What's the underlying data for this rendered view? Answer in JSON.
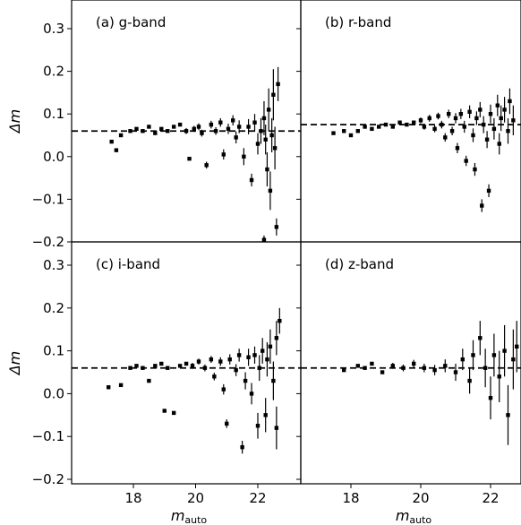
{
  "chart_data": [
    {
      "panel": "a",
      "type": "scatter",
      "label": "(a) g-band",
      "xlabel": "",
      "ylabel": "Δm",
      "xlim": [
        16.3,
        22.8
      ],
      "ylim": [
        -0.2,
        0.34
      ],
      "xticks": [],
      "yticks": [
        "0.3",
        "0.2",
        "0.1",
        "0.0",
        "−0.1",
        "−0.2"
      ],
      "reference_line": 0.06,
      "points": [
        [
          17.3,
          0.035,
          0.004
        ],
        [
          17.45,
          0.015,
          0.004
        ],
        [
          17.6,
          0.05,
          0.004
        ],
        [
          17.9,
          0.06,
          0.005
        ],
        [
          18.1,
          0.065,
          0.005
        ],
        [
          18.3,
          0.06,
          0.005
        ],
        [
          18.5,
          0.07,
          0.005
        ],
        [
          18.7,
          0.055,
          0.005
        ],
        [
          18.9,
          0.065,
          0.006
        ],
        [
          19.1,
          0.06,
          0.006
        ],
        [
          19.3,
          0.07,
          0.006
        ],
        [
          19.5,
          0.075,
          0.006
        ],
        [
          19.7,
          0.06,
          0.007
        ],
        [
          19.8,
          -0.005,
          0.006
        ],
        [
          19.95,
          0.065,
          0.007
        ],
        [
          20.1,
          0.07,
          0.008
        ],
        [
          20.2,
          0.055,
          0.008
        ],
        [
          20.35,
          -0.02,
          0.008
        ],
        [
          20.5,
          0.075,
          0.009
        ],
        [
          20.65,
          0.06,
          0.009
        ],
        [
          20.8,
          0.08,
          0.01
        ],
        [
          20.9,
          0.005,
          0.012
        ],
        [
          21.05,
          0.065,
          0.012
        ],
        [
          21.2,
          0.085,
          0.012
        ],
        [
          21.3,
          0.045,
          0.014
        ],
        [
          21.4,
          0.07,
          0.015
        ],
        [
          21.55,
          0.0,
          0.02
        ],
        [
          21.7,
          0.07,
          0.018
        ],
        [
          21.8,
          -0.055,
          0.015
        ],
        [
          21.9,
          0.08,
          0.02
        ],
        [
          22.0,
          0.03,
          0.025
        ],
        [
          22.1,
          0.06,
          0.03
        ],
        [
          22.2,
          0.09,
          0.04
        ],
        [
          22.25,
          0.04,
          0.035
        ],
        [
          22.3,
          -0.03,
          0.04
        ],
        [
          22.35,
          0.11,
          0.05
        ],
        [
          22.4,
          -0.08,
          0.045
        ],
        [
          22.45,
          0.05,
          0.04
        ],
        [
          22.5,
          0.145,
          0.06
        ],
        [
          22.55,
          0.02,
          0.05
        ],
        [
          22.6,
          -0.165,
          0.02
        ],
        [
          22.65,
          0.17,
          0.04
        ],
        [
          22.2,
          -0.195,
          0.01
        ]
      ]
    },
    {
      "panel": "b",
      "type": "scatter",
      "label": "(b) r-band",
      "xlabel": "",
      "ylabel": "",
      "xlim": [
        16.3,
        22.8
      ],
      "ylim": [
        -0.2,
        0.34
      ],
      "xticks": [],
      "yticks": [],
      "reference_line": 0.075,
      "points": [
        [
          17.5,
          0.055,
          0.004
        ],
        [
          17.8,
          0.06,
          0.004
        ],
        [
          18.0,
          0.05,
          0.004
        ],
        [
          18.2,
          0.06,
          0.005
        ],
        [
          18.4,
          0.07,
          0.005
        ],
        [
          18.6,
          0.065,
          0.005
        ],
        [
          18.8,
          0.07,
          0.005
        ],
        [
          19.0,
          0.075,
          0.005
        ],
        [
          19.2,
          0.07,
          0.006
        ],
        [
          19.4,
          0.08,
          0.006
        ],
        [
          19.6,
          0.075,
          0.006
        ],
        [
          19.8,
          0.08,
          0.006
        ],
        [
          20.0,
          0.085,
          0.007
        ],
        [
          20.1,
          0.07,
          0.007
        ],
        [
          20.25,
          0.09,
          0.008
        ],
        [
          20.4,
          0.065,
          0.008
        ],
        [
          20.5,
          0.095,
          0.008
        ],
        [
          20.6,
          0.075,
          0.009
        ],
        [
          20.7,
          0.045,
          0.01
        ],
        [
          20.8,
          0.1,
          0.01
        ],
        [
          20.9,
          0.06,
          0.01
        ],
        [
          21.0,
          0.09,
          0.012
        ],
        [
          21.05,
          0.02,
          0.012
        ],
        [
          21.15,
          0.1,
          0.012
        ],
        [
          21.25,
          0.07,
          0.014
        ],
        [
          21.3,
          -0.01,
          0.012
        ],
        [
          21.4,
          0.105,
          0.015
        ],
        [
          21.5,
          0.05,
          0.016
        ],
        [
          21.55,
          -0.03,
          0.015
        ],
        [
          21.6,
          0.09,
          0.016
        ],
        [
          21.7,
          0.11,
          0.018
        ],
        [
          21.75,
          -0.115,
          0.015
        ],
        [
          21.8,
          0.075,
          0.02
        ],
        [
          21.9,
          0.04,
          0.02
        ],
        [
          21.95,
          -0.08,
          0.015
        ],
        [
          22.0,
          0.1,
          0.022
        ],
        [
          22.1,
          0.065,
          0.025
        ],
        [
          22.2,
          0.12,
          0.025
        ],
        [
          22.25,
          0.03,
          0.025
        ],
        [
          22.3,
          0.09,
          0.03
        ],
        [
          22.4,
          0.11,
          0.03
        ],
        [
          22.5,
          0.06,
          0.03
        ],
        [
          22.55,
          0.13,
          0.03
        ],
        [
          22.65,
          0.085,
          0.035
        ]
      ]
    },
    {
      "panel": "c",
      "type": "scatter",
      "label": "(c) i-band",
      "xlabel": "mauto",
      "ylabel": "Δm",
      "xlim": [
        16.3,
        22.8
      ],
      "ylim": [
        -0.2,
        0.34
      ],
      "xticks": [
        "18",
        "20",
        "22"
      ],
      "yticks": [
        "0.3",
        "0.2",
        "0.1",
        "0.0",
        "−0.1",
        "−0.2"
      ],
      "reference_line": 0.06,
      "points": [
        [
          17.2,
          0.015,
          0.004
        ],
        [
          17.6,
          0.02,
          0.004
        ],
        [
          17.9,
          0.06,
          0.004
        ],
        [
          18.1,
          0.065,
          0.005
        ],
        [
          18.3,
          0.06,
          0.005
        ],
        [
          18.5,
          0.03,
          0.005
        ],
        [
          18.7,
          0.065,
          0.005
        ],
        [
          18.9,
          0.07,
          0.005
        ],
        [
          19.0,
          -0.04,
          0.005
        ],
        [
          19.1,
          0.06,
          0.006
        ],
        [
          19.3,
          -0.045,
          0.006
        ],
        [
          19.5,
          0.065,
          0.006
        ],
        [
          19.7,
          0.07,
          0.006
        ],
        [
          19.9,
          0.065,
          0.007
        ],
        [
          20.1,
          0.075,
          0.007
        ],
        [
          20.3,
          0.06,
          0.008
        ],
        [
          20.5,
          0.08,
          0.008
        ],
        [
          20.6,
          0.04,
          0.009
        ],
        [
          20.8,
          0.075,
          0.01
        ],
        [
          20.9,
          0.01,
          0.012
        ],
        [
          21.0,
          -0.07,
          0.01
        ],
        [
          21.1,
          0.08,
          0.012
        ],
        [
          21.3,
          0.055,
          0.014
        ],
        [
          21.4,
          0.09,
          0.015
        ],
        [
          21.5,
          -0.125,
          0.015
        ],
        [
          21.6,
          0.03,
          0.02
        ],
        [
          21.7,
          0.085,
          0.02
        ],
        [
          21.8,
          0.0,
          0.025
        ],
        [
          21.9,
          0.09,
          0.02
        ],
        [
          22.0,
          -0.075,
          0.03
        ],
        [
          22.05,
          0.06,
          0.03
        ],
        [
          22.15,
          0.1,
          0.03
        ],
        [
          22.25,
          -0.05,
          0.04
        ],
        [
          22.3,
          0.08,
          0.04
        ],
        [
          22.4,
          0.11,
          0.04
        ],
        [
          22.5,
          0.03,
          0.045
        ],
        [
          22.6,
          0.13,
          0.04
        ],
        [
          22.7,
          0.17,
          0.03
        ],
        [
          22.6,
          -0.08,
          0.05
        ]
      ]
    },
    {
      "panel": "d",
      "type": "scatter",
      "label": "(d) z-band",
      "xlabel": "mauto",
      "ylabel": "",
      "xlim": [
        16.3,
        22.8
      ],
      "ylim": [
        -0.2,
        0.34
      ],
      "xticks": [
        "18",
        "20",
        "22"
      ],
      "yticks": [],
      "reference_line": 0.06,
      "points": [
        [
          17.8,
          0.055,
          0.004
        ],
        [
          18.2,
          0.065,
          0.005
        ],
        [
          18.4,
          0.06,
          0.005
        ],
        [
          18.6,
          0.07,
          0.006
        ],
        [
          18.9,
          0.05,
          0.006
        ],
        [
          19.2,
          0.065,
          0.007
        ],
        [
          19.5,
          0.06,
          0.008
        ],
        [
          19.8,
          0.07,
          0.009
        ],
        [
          20.1,
          0.06,
          0.01
        ],
        [
          20.4,
          0.055,
          0.012
        ],
        [
          20.7,
          0.065,
          0.015
        ],
        [
          21.0,
          0.05,
          0.02
        ],
        [
          21.2,
          0.08,
          0.025
        ],
        [
          21.4,
          0.03,
          0.03
        ],
        [
          21.5,
          0.09,
          0.035
        ],
        [
          21.7,
          0.13,
          0.04
        ],
        [
          21.85,
          0.06,
          0.045
        ],
        [
          22.0,
          -0.01,
          0.05
        ],
        [
          22.1,
          0.09,
          0.05
        ],
        [
          22.25,
          0.04,
          0.06
        ],
        [
          22.4,
          0.1,
          0.06
        ],
        [
          22.5,
          -0.05,
          0.07
        ],
        [
          22.65,
          0.08,
          0.07
        ],
        [
          22.75,
          0.11,
          0.06
        ]
      ]
    }
  ]
}
